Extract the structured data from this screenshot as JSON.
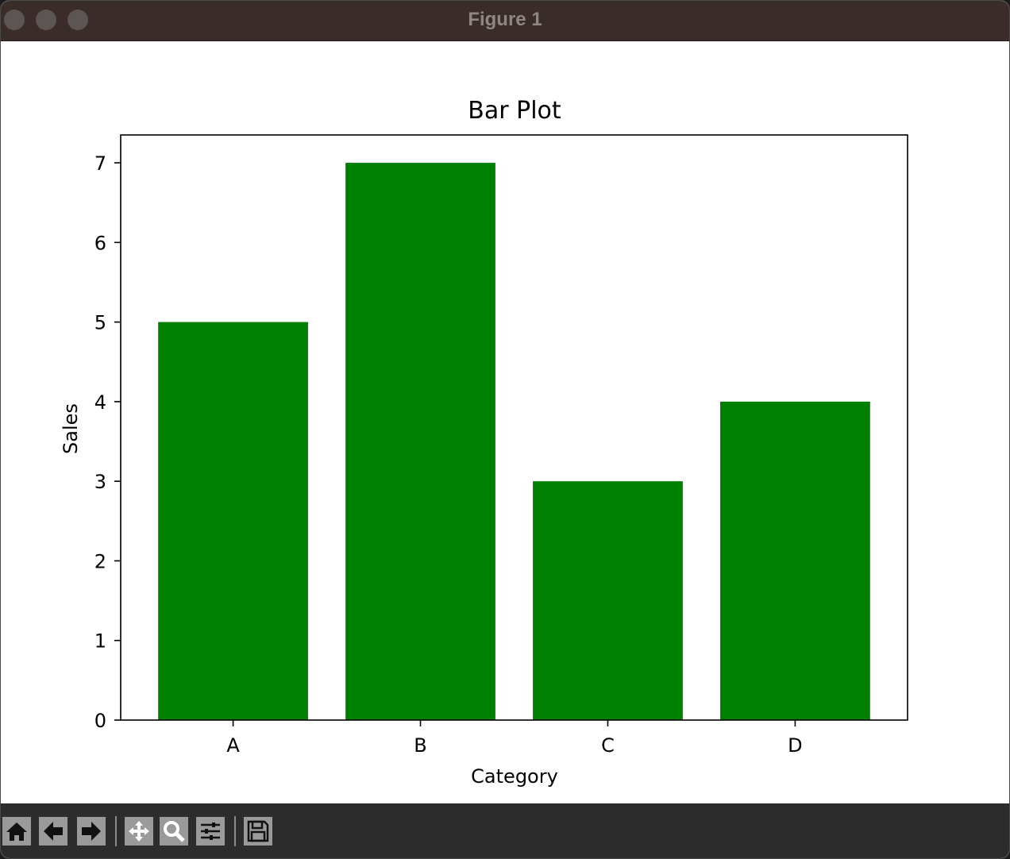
{
  "window": {
    "title": "Figure 1"
  },
  "toolbar": {
    "buttons": [
      {
        "name": "home-button",
        "icon": "home-icon"
      },
      {
        "name": "back-button",
        "icon": "arrow-left-icon"
      },
      {
        "name": "forward-button",
        "icon": "arrow-right-icon"
      },
      {
        "name": "pan-button",
        "icon": "move-icon"
      },
      {
        "name": "zoom-button",
        "icon": "magnifier-icon"
      },
      {
        "name": "configure-subplots-button",
        "icon": "sliders-icon"
      },
      {
        "name": "save-button",
        "icon": "floppy-disk-icon"
      }
    ]
  },
  "chart_data": {
    "type": "bar",
    "title": "Bar Plot",
    "xlabel": "Category",
    "ylabel": "Sales",
    "categories": [
      "A",
      "B",
      "C",
      "D"
    ],
    "values": [
      5,
      7,
      3,
      4
    ],
    "ylim": [
      0,
      7.35
    ],
    "yticks": [
      0,
      1,
      2,
      3,
      4,
      5,
      6,
      7
    ],
    "bar_color": "#008000",
    "grid": false
  }
}
